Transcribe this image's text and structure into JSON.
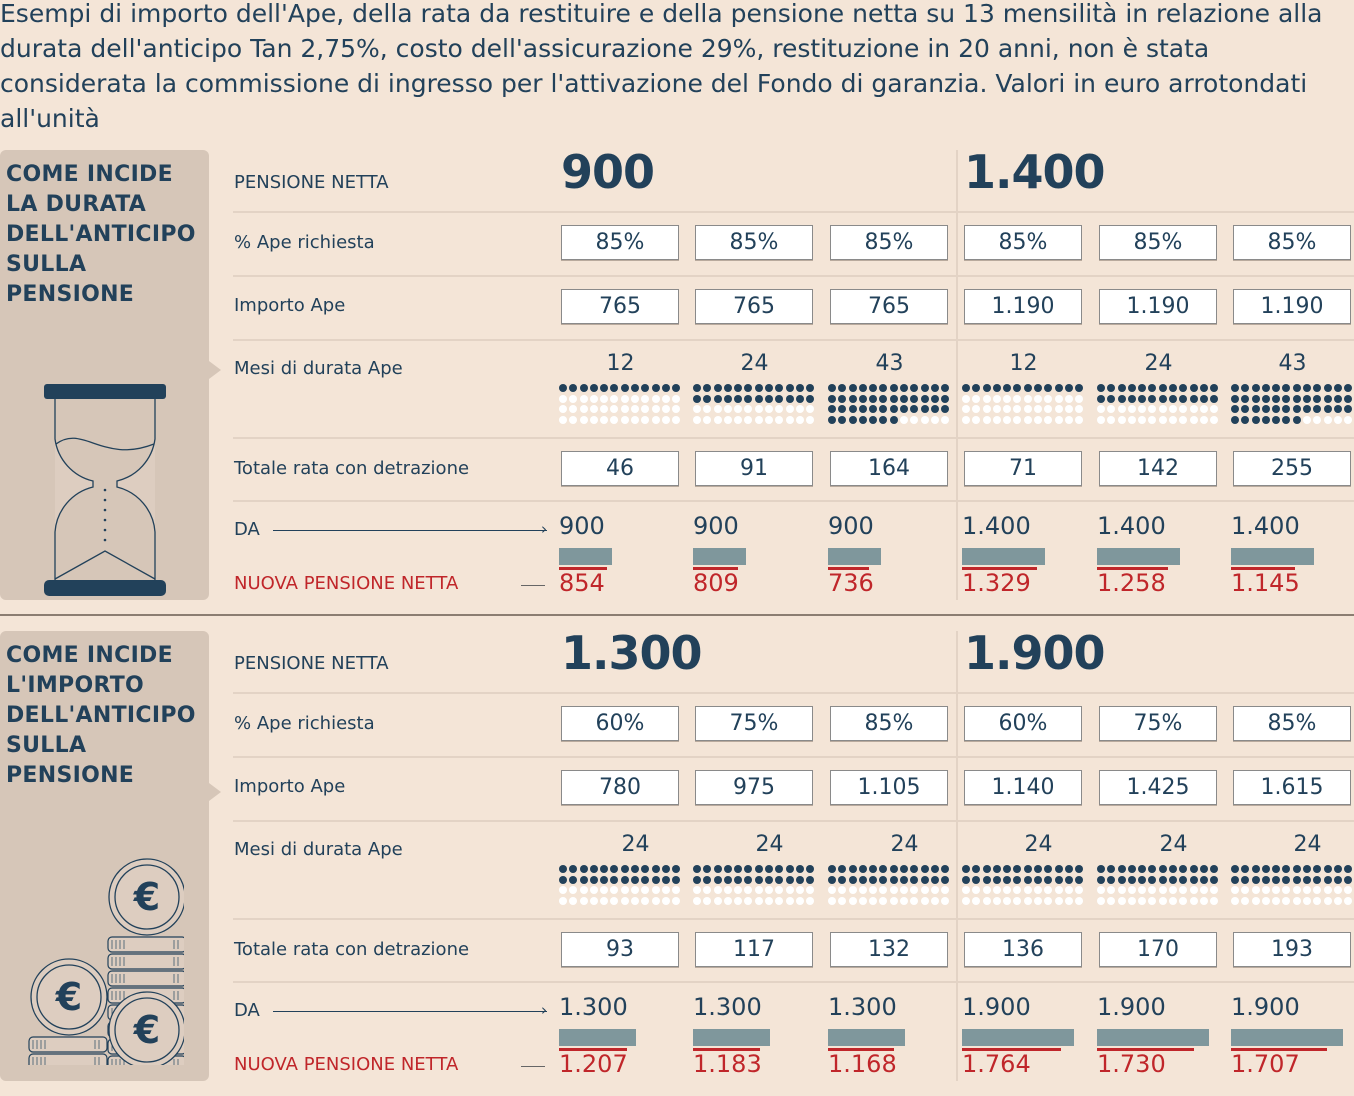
{
  "title": "Esempi di importo dell'Ape, della rata da restituire e della pensione netta su 13 mensilità in relazione alla durata dell'anticipo Tan 2,75%, costo dell'assicurazione 29%, restituzione in 20 anni, non è stata considerata la commissione di ingresso per l'attivazione del Fondo di garanzia. Valori in euro arrotondati all'unità",
  "colors": {
    "dark": "#22415a",
    "red": "#c0262a",
    "panel": "#d6c6b8",
    "background": "#f4e5d7",
    "bar": "#7f979c"
  },
  "labels": {
    "pensione_netta": "PENSIONE NETTA",
    "ape_richiesta": "% Ape richiesta",
    "importo_ape": "Importo Ape",
    "mesi": "Mesi di durata Ape",
    "totale_rata": "Totale rata con detrazione",
    "da": "DA",
    "nuova": "NUOVA PENSIONE NETTA"
  },
  "sections": [
    {
      "panel_title": "COME INCIDE LA DURATA DELL'ANTICIPO SULLA PENSIONE",
      "icon": "hourglass-icon",
      "groups": [
        "900",
        "1.400"
      ],
      "ape_pct": [
        "85%",
        "85%",
        "85%",
        "85%",
        "85%",
        "85%"
      ],
      "importo": [
        "765",
        "765",
        "765",
        "1.190",
        "1.190",
        "1.190"
      ],
      "mesi": [
        12,
        24,
        43,
        12,
        24,
        43
      ],
      "totale": [
        "46",
        "91",
        "164",
        "71",
        "142",
        "255"
      ],
      "da": [
        "900",
        "900",
        "900",
        "1.400",
        "1.400",
        "1.400"
      ],
      "da_values": [
        900,
        900,
        900,
        1400,
        1400,
        1400
      ],
      "nuova": [
        "854",
        "809",
        "736",
        "1.329",
        "1.258",
        "1.145"
      ],
      "nuova_values": [
        854,
        809,
        736,
        1329,
        1258,
        1145
      ]
    },
    {
      "panel_title": "COME INCIDE L'IMPORTO DELL'ANTICIPO SULLA PENSIONE",
      "icon": "euro-coins-icon",
      "groups": [
        "1.300",
        "1.900"
      ],
      "ape_pct": [
        "60%",
        "75%",
        "85%",
        "60%",
        "75%",
        "85%"
      ],
      "importo": [
        "780",
        "975",
        "1.105",
        "1.140",
        "1.425",
        "1.615"
      ],
      "mesi": [
        24,
        24,
        24,
        24,
        24,
        24
      ],
      "totale": [
        "93",
        "117",
        "132",
        "136",
        "170",
        "193"
      ],
      "da": [
        "1.300",
        "1.300",
        "1.300",
        "1.900",
        "1.900",
        "1.900"
      ],
      "da_values": [
        1300,
        1300,
        1300,
        1900,
        1900,
        1900
      ],
      "nuova": [
        "1.207",
        "1.183",
        "1.168",
        "1.764",
        "1.730",
        "1.707"
      ],
      "nuova_values": [
        1207,
        1183,
        1168,
        1764,
        1730,
        1707
      ]
    }
  ]
}
